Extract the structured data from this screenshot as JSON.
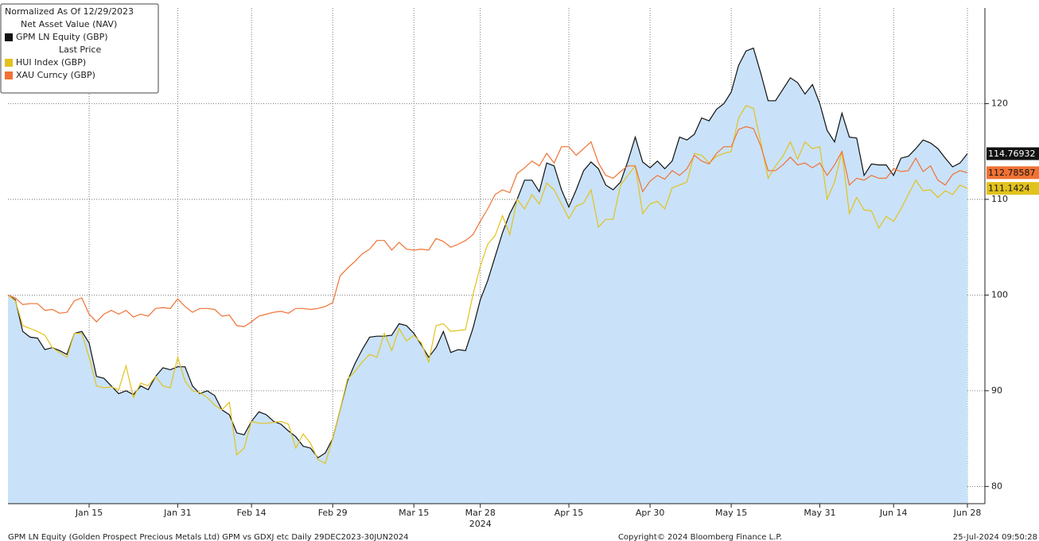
{
  "chart_data": {
    "type": "line",
    "legend_title": "Normalized As Of 12/29/2023",
    "legend_groups": [
      "Net Asset Value (NAV)",
      "Last Price"
    ],
    "x_year_label": "2024",
    "footer_left": "GPM LN Equity (Golden Prospect Precious Metals Ltd) GPM vs GDXJ etc  Daily 29DEC2023-30JUN2024",
    "footer_center": "Copyright© 2024 Bloomberg Finance L.P.",
    "footer_right": "25-Jul-2024 09:50:28",
    "categories": [
      "Dec 29",
      "Jan 1",
      "Jan 2",
      "Jan 3",
      "Jan 4",
      "Jan 5",
      "Jan 8",
      "Jan 9",
      "Jan 10",
      "Jan 11",
      "Jan 12",
      "Jan 15",
      "Jan 16",
      "Jan 17",
      "Jan 18",
      "Jan 19",
      "Jan 22",
      "Jan 23",
      "Jan 24",
      "Jan 25",
      "Jan 26",
      "Jan 29",
      "Jan 30",
      "Jan 31",
      "Feb 1",
      "Feb 2",
      "Feb 5",
      "Feb 6",
      "Feb 7",
      "Feb 8",
      "Feb 9",
      "Feb 12",
      "Feb 13",
      "Feb 14",
      "Feb 15",
      "Feb 16",
      "Feb 19",
      "Feb 20",
      "Feb 21",
      "Feb 22",
      "Feb 23",
      "Feb 26",
      "Feb 27",
      "Feb 28",
      "Feb 29",
      "Mar 1",
      "Mar 4",
      "Mar 5",
      "Mar 6",
      "Mar 7",
      "Mar 8",
      "Mar 11",
      "Mar 12",
      "Mar 13",
      "Mar 14",
      "Mar 15",
      "Mar 18",
      "Mar 19",
      "Mar 20",
      "Mar 21",
      "Mar 22",
      "Mar 25",
      "Mar 26",
      "Mar 27",
      "Mar 28",
      "Mar 29",
      "Apr 1",
      "Apr 2",
      "Apr 3",
      "Apr 4",
      "Apr 5",
      "Apr 8",
      "Apr 9",
      "Apr 10",
      "Apr 11",
      "Apr 12",
      "Apr 15",
      "Apr 16",
      "Apr 17",
      "Apr 18",
      "Apr 19",
      "Apr 22",
      "Apr 23",
      "Apr 24",
      "Apr 25",
      "Apr 26",
      "Apr 29",
      "Apr 30",
      "May 1",
      "May 2",
      "May 3",
      "May 6",
      "May 7",
      "May 8",
      "May 9",
      "May 10",
      "May 13",
      "May 14",
      "May 15",
      "May 16",
      "May 17",
      "May 20",
      "May 21",
      "May 22",
      "May 23",
      "May 24",
      "May 27",
      "May 28",
      "May 29",
      "May 30",
      "May 31",
      "Jun 3",
      "Jun 4",
      "Jun 5",
      "Jun 6",
      "Jun 7",
      "Jun 10",
      "Jun 11",
      "Jun 12",
      "Jun 13",
      "Jun 14",
      "Jun 17",
      "Jun 18",
      "Jun 19",
      "Jun 20",
      "Jun 21",
      "Jun 24",
      "Jun 25",
      "Jun 26",
      "Jun 27",
      "Jun 28"
    ],
    "xticks": [
      "Jan 15",
      "Jan 31",
      "Feb 14",
      "Feb 29",
      "Mar 15",
      "Mar 28",
      "Apr 15",
      "Apr 30",
      "May 15",
      "May 31",
      "Jun 14",
      "Jun 28"
    ],
    "ylim": [
      78.2,
      130
    ],
    "yticks": [
      80,
      90,
      100,
      110,
      120
    ],
    "grid": true,
    "series": [
      {
        "name": "GPM LN Equity (GBP)",
        "group": 0,
        "color": "#111111",
        "fill": "#c9e2fa",
        "values": [
          100,
          99.5,
          96.2,
          95.6,
          95.5,
          94.3,
          94.5,
          94.2,
          93.8,
          96.0,
          96.2,
          95.0,
          91.5,
          91.3,
          90.5,
          89.7,
          90.0,
          89.6,
          90.5,
          90.1,
          91.5,
          92.4,
          92.2,
          92.5,
          92.5,
          90.5,
          89.7,
          90.0,
          89.5,
          88.0,
          87.5,
          85.6,
          85.4,
          86.8,
          87.8,
          87.5,
          86.8,
          86.5,
          85.8,
          85.2,
          84.2,
          84.0,
          83.0,
          83.5,
          85.0,
          88.0,
          91.0,
          92.8,
          94.3,
          95.6,
          95.7,
          95.7,
          95.8,
          97.0,
          96.8,
          96.0,
          94.8,
          93.5,
          94.5,
          96.2,
          94.0,
          94.3,
          94.2,
          96.5,
          99.5,
          101.5,
          104.0,
          106.5,
          108.5,
          110.0,
          112.0,
          112.0,
          110.8,
          113.8,
          113.5,
          111.0,
          109.2,
          111.0,
          113.0,
          113.9,
          113.2,
          111.5,
          111.0,
          111.8,
          114.0,
          116.5,
          113.9,
          113.3,
          114.0,
          113.2,
          114.0,
          116.5,
          116.2,
          116.8,
          118.5,
          118.2,
          119.4,
          120.0,
          121.2,
          124.0,
          125.5,
          125.8,
          123.2,
          120.3,
          120.3,
          121.5,
          122.7,
          122.2,
          121.0,
          122.0,
          120.0,
          117.2,
          116.0,
          119.0,
          116.5,
          116.4,
          112.5,
          113.7,
          113.6,
          113.6,
          112.5,
          114.3,
          114.5,
          115.3,
          116.2,
          115.9,
          115.3,
          114.3,
          113.4,
          113.8,
          114.76932
        ]
      },
      {
        "name": "HUI Index (GBP)",
        "group": 1,
        "color": "#e2c21e",
        "values": [
          100,
          99.4,
          96.8,
          96.5,
          96.2,
          95.8,
          94.5,
          94.0,
          93.5,
          96.0,
          96.0,
          93.5,
          90.5,
          90.3,
          90.4,
          90.1,
          92.6,
          89.3,
          90.8,
          90.5,
          91.5,
          90.5,
          90.3,
          93.5,
          91.0,
          90.0,
          89.8,
          89.3,
          88.5,
          88.0,
          88.8,
          83.3,
          84.0,
          86.8,
          86.6,
          86.6,
          86.7,
          86.8,
          86.5,
          84.0,
          85.5,
          84.5,
          82.8,
          82.4,
          85.0,
          88.0,
          91.2,
          92.0,
          93.0,
          93.8,
          93.5,
          96.0,
          94.2,
          96.5,
          95.2,
          95.8,
          95.0,
          93.0,
          96.8,
          97.0,
          96.2,
          96.3,
          96.4,
          100.0,
          103.0,
          105.3,
          106.2,
          108.3,
          106.3,
          110.0,
          109.0,
          110.5,
          109.5,
          111.7,
          111.0,
          109.5,
          108.0,
          109.3,
          109.6,
          111.0,
          107.1,
          107.9,
          107.9,
          111.5,
          112.5,
          113.5,
          108.5,
          109.5,
          109.8,
          109.0,
          111.2,
          111.5,
          111.8,
          114.8,
          114.6,
          113.8,
          114.5,
          114.8,
          115.0,
          118.5,
          119.8,
          119.5,
          116.0,
          112.2,
          113.5,
          114.5,
          116.0,
          114.2,
          116.0,
          115.3,
          115.5,
          110.0,
          111.8,
          115.0,
          108.5,
          110.2,
          108.9,
          108.8,
          107.0,
          108.2,
          107.7,
          109.0,
          110.5,
          112.0,
          110.9,
          111.0,
          110.2,
          110.9,
          110.5,
          111.5,
          111.1424
        ]
      },
      {
        "name": "XAU Curncy (GBP)",
        "group": 1,
        "color": "#f07234",
        "values": [
          100,
          99.7,
          99.0,
          99.1,
          99.1,
          98.4,
          98.5,
          98.1,
          98.2,
          99.4,
          99.7,
          98.0,
          97.2,
          98.0,
          98.4,
          98.0,
          98.4,
          97.7,
          98.0,
          97.8,
          98.6,
          98.7,
          98.6,
          99.6,
          98.8,
          98.2,
          98.6,
          98.6,
          98.5,
          97.8,
          97.9,
          96.8,
          96.7,
          97.2,
          97.8,
          98.0,
          98.2,
          98.3,
          98.1,
          98.6,
          98.6,
          98.5,
          98.6,
          98.8,
          99.2,
          102.0,
          102.8,
          103.5,
          104.3,
          104.8,
          105.7,
          105.7,
          104.7,
          105.5,
          104.8,
          104.7,
          104.8,
          104.7,
          105.9,
          105.6,
          105.0,
          105.3,
          105.7,
          106.3,
          107.7,
          109.0,
          110.5,
          111.0,
          110.7,
          112.7,
          113.3,
          114.0,
          113.5,
          114.8,
          113.8,
          115.5,
          115.5,
          114.6,
          115.3,
          116.0,
          113.8,
          112.5,
          112.2,
          112.9,
          113.5,
          113.5,
          110.8,
          111.9,
          112.5,
          112.1,
          113.0,
          112.5,
          113.2,
          114.6,
          114.0,
          113.7,
          114.8,
          115.5,
          115.5,
          117.3,
          117.6,
          117.4,
          115.6,
          113.0,
          113.0,
          113.6,
          114.4,
          113.6,
          113.8,
          113.3,
          113.8,
          112.5,
          113.6,
          115.0,
          111.5,
          112.2,
          112.0,
          112.5,
          112.2,
          112.2,
          113.2,
          112.9,
          113.0,
          114.3,
          112.9,
          113.5,
          112.0,
          111.5,
          112.6,
          113.0,
          112.78587
        ]
      }
    ]
  }
}
